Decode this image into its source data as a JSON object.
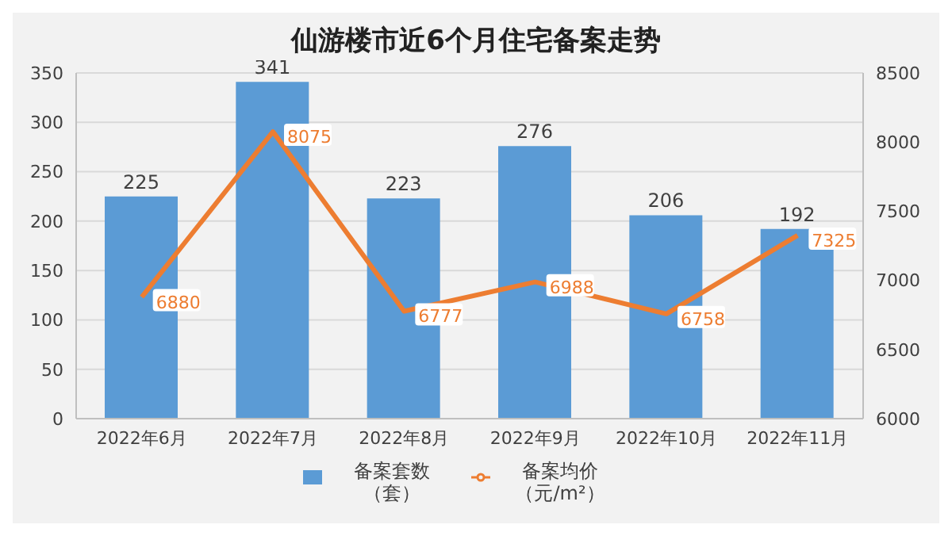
{
  "chart_data": {
    "type": "bar",
    "title": "仙游楼市近6个月住宅备案走势",
    "categories": [
      "2022年6月",
      "2022年7月",
      "2022年8月",
      "2022年9月",
      "2022年10月",
      "2022年11月"
    ],
    "series": [
      {
        "name": "备案套数（套）",
        "color": "#5b9bd5",
        "values": [
          225,
          341,
          223,
          276,
          206,
          192
        ]
      },
      {
        "name": "备案均价（元/m²）",
        "type": "line",
        "axis": "y2",
        "color": "#ed7d31",
        "values": [
          6880,
          8075,
          6777,
          6988,
          6758,
          7325
        ]
      }
    ],
    "ylim": [
      0,
      350
    ],
    "yticks": [
      0,
      50,
      100,
      150,
      200,
      250,
      300,
      350
    ],
    "y2lim": [
      6000,
      8500
    ],
    "y2ticks": [
      6000,
      6500,
      7000,
      7500,
      8000,
      8500
    ],
    "grid": "y",
    "legend": "bottom",
    "data_labels": true,
    "marker": "none",
    "line_style": "solid"
  }
}
